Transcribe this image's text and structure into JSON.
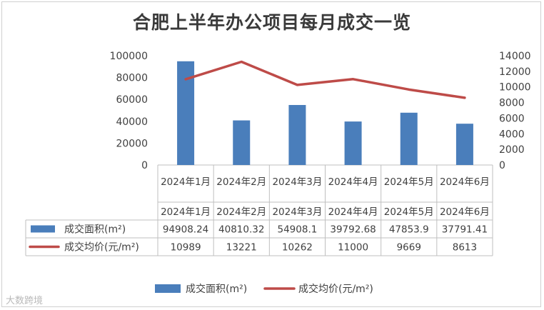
{
  "chart_data": {
    "type": "bar",
    "title": "合肥上半年办公项目每月成交一览",
    "categories": [
      "2024年1月",
      "2024年2月",
      "2024年3月",
      "2024年4月",
      "2024年5月",
      "2024年6月"
    ],
    "series": [
      {
        "name": "成交面积(m²)",
        "type": "bar",
        "axis": "left",
        "color": "#4a7ebb",
        "values": [
          94908.24,
          40810.32,
          54908.1,
          39792.68,
          47853.9,
          37791.41
        ],
        "labels": [
          "94908.24",
          "40810.32",
          "54908.1",
          "39792.68",
          "47853.9",
          "37791.41"
        ]
      },
      {
        "name": "成交均价(元/m²)",
        "type": "line",
        "axis": "right",
        "color": "#be4b48",
        "values": [
          10989,
          13221,
          10262,
          11000,
          9669,
          8613
        ],
        "labels": [
          "10989",
          "13221",
          "10262",
          "11000",
          "9669",
          "8613"
        ]
      }
    ],
    "y_left": {
      "min": 0,
      "max": 100000,
      "ticks": [
        "0",
        "20000",
        "40000",
        "60000",
        "80000",
        "100000"
      ]
    },
    "y_right": {
      "min": 0,
      "max": 14000,
      "ticks": [
        "0",
        "2000",
        "4000",
        "6000",
        "8000",
        "10000",
        "12000",
        "14000"
      ]
    },
    "data_table": true,
    "legend": "bottom"
  },
  "watermark": "大数跨境"
}
